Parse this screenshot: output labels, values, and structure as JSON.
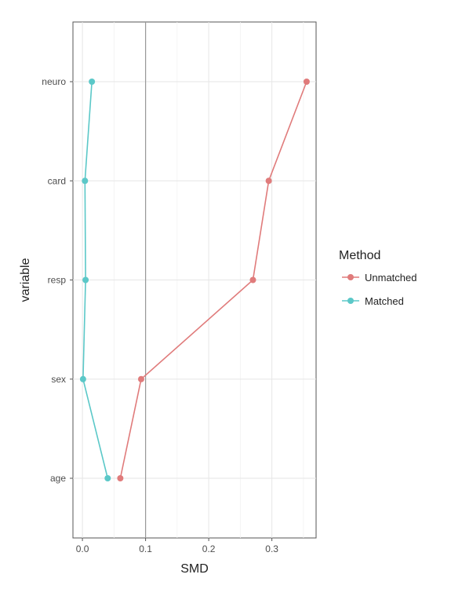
{
  "chart_data": {
    "type": "line",
    "title": "",
    "xlabel": "SMD",
    "ylabel": "variable",
    "xlim": [
      -0.015,
      0.37
    ],
    "x_ticks": [
      0.0,
      0.1,
      0.2,
      0.3
    ],
    "x_tick_labels": [
      "0.0",
      "0.1",
      "0.2",
      "0.3"
    ],
    "categories": [
      "age",
      "sex",
      "resp",
      "card",
      "neuro"
    ],
    "reference_line": 0.1,
    "grid": true,
    "legend": {
      "title": "Method",
      "position": "right",
      "entries": [
        "Unmatched",
        "Matched"
      ]
    },
    "series": [
      {
        "name": "Unmatched",
        "color": "#E07B7B",
        "values": [
          0.06,
          0.093,
          0.27,
          0.295,
          0.355
        ]
      },
      {
        "name": "Matched",
        "color": "#5BC8C8",
        "values": [
          0.04,
          0.001,
          0.005,
          0.004,
          0.015
        ]
      }
    ]
  }
}
